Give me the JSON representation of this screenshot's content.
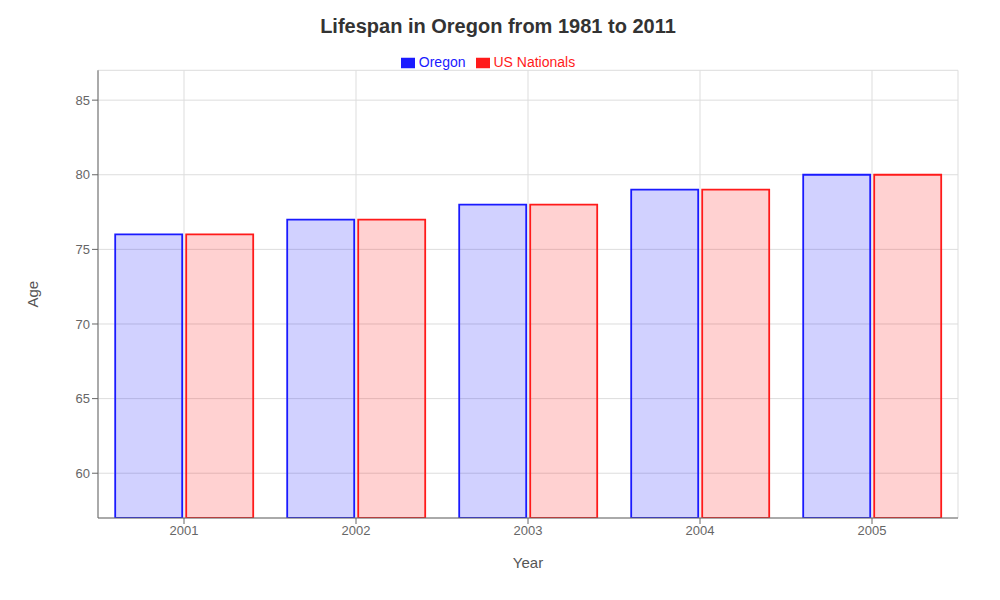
{
  "chart_data": {
    "type": "bar",
    "title": "Lifespan in Oregon from 1981 to 2011",
    "x_label": "Year",
    "y_label": "Age",
    "categories": [
      "2001",
      "2002",
      "2003",
      "2004",
      "2005"
    ],
    "series": [
      {
        "name": "Oregon",
        "color": "#1a1aff",
        "values": [
          76,
          77,
          78,
          79,
          80
        ]
      },
      {
        "name": "US Nationals",
        "color": "#ff1a1a",
        "values": [
          76,
          77,
          78,
          79,
          80
        ]
      }
    ],
    "ylim": [
      57,
      87
    ],
    "yticks": [
      60,
      65,
      70,
      75,
      80,
      85
    ],
    "grid": true,
    "legend": "top"
  }
}
